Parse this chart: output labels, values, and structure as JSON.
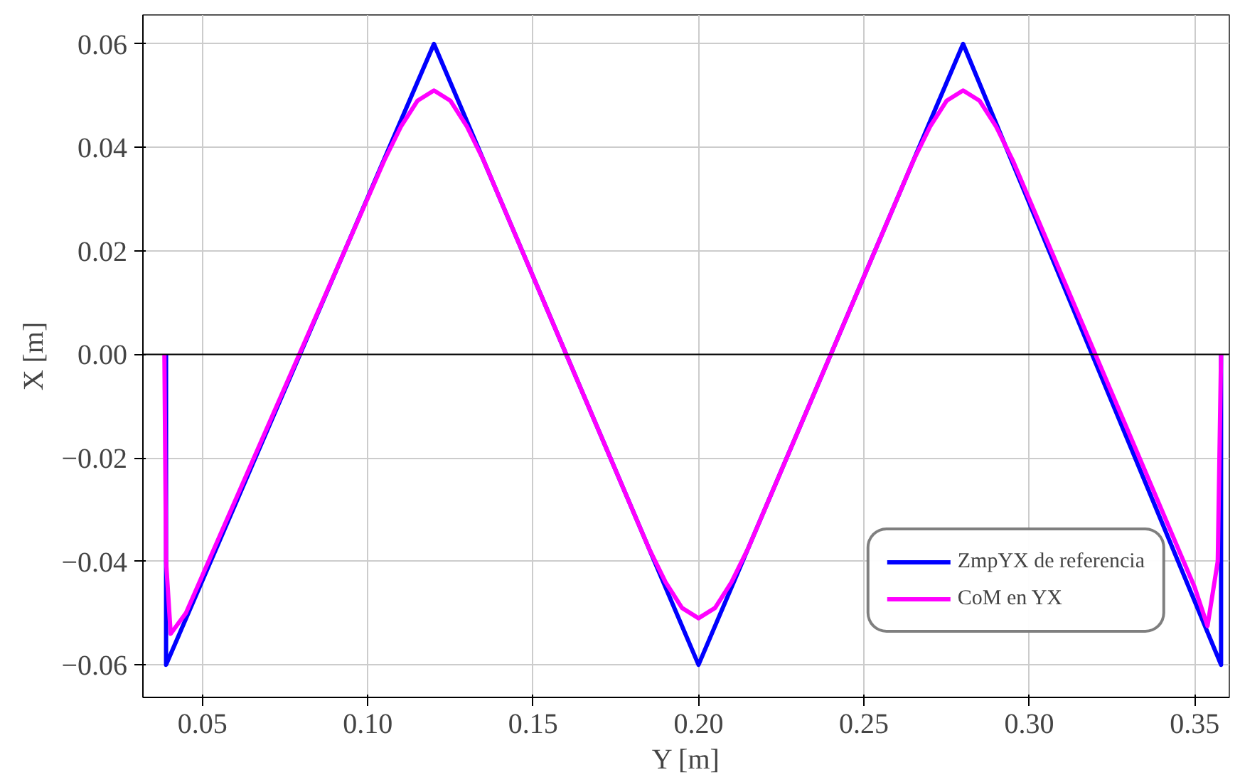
{
  "chart_data": {
    "type": "line",
    "xlabel": "Y [m]",
    "ylabel": "X [m]",
    "xlim": [
      0.032,
      0.3605
    ],
    "ylim": [
      -0.0663,
      0.0656
    ],
    "xticks": [
      {
        "value": 0.05,
        "label": "0.05"
      },
      {
        "value": 0.1,
        "label": "0.10"
      },
      {
        "value": 0.15,
        "label": "0.15"
      },
      {
        "value": 0.2,
        "label": "0.20"
      },
      {
        "value": 0.25,
        "label": "0.25"
      },
      {
        "value": 0.3,
        "label": "0.30"
      },
      {
        "value": 0.35,
        "label": "0.35"
      }
    ],
    "yticks": [
      {
        "value": -0.06,
        "label": "−0.06"
      },
      {
        "value": -0.04,
        "label": "−0.04"
      },
      {
        "value": -0.02,
        "label": "−0.02"
      },
      {
        "value": 0,
        "label": "0.00"
      },
      {
        "value": 0.02,
        "label": "0.02"
      },
      {
        "value": 0.04,
        "label": "0.04"
      },
      {
        "value": 0.06,
        "label": "0.06"
      }
    ],
    "grid": true,
    "legend": "bottom right",
    "line_style": "solid",
    "marker": "none",
    "ref_lines": [
      {
        "axis": "y",
        "value": 0,
        "color": "#000000"
      }
    ],
    "series": [
      {
        "name": "ZmpYX de referencia",
        "color": "#0000ff",
        "x": [
          0.039,
          0.039,
          0.12,
          0.2,
          0.28,
          0.358,
          0.358
        ],
        "values": [
          0.0,
          -0.06,
          0.06,
          -0.06,
          0.06,
          -0.06,
          0.0
        ]
      },
      {
        "name": "CoM en YX",
        "color": "#ff00ff",
        "x": [
          0.0385,
          0.039,
          0.0404,
          0.045,
          0.105,
          0.11,
          0.115,
          0.12,
          0.125,
          0.13,
          0.135,
          0.185,
          0.19,
          0.195,
          0.2,
          0.205,
          0.21,
          0.215,
          0.265,
          0.27,
          0.275,
          0.28,
          0.285,
          0.29,
          0.295,
          0.35,
          0.3539,
          0.357,
          0.358
        ],
        "values": [
          0.0,
          -0.04,
          -0.054,
          -0.05,
          0.0375,
          0.044,
          0.049,
          0.051,
          0.049,
          0.044,
          0.0375,
          -0.0375,
          -0.044,
          -0.049,
          -0.051,
          -0.049,
          -0.044,
          -0.0375,
          0.0375,
          0.044,
          0.049,
          0.051,
          0.049,
          0.044,
          0.0375,
          -0.045,
          -0.0525,
          -0.04,
          0.0
        ]
      }
    ]
  }
}
